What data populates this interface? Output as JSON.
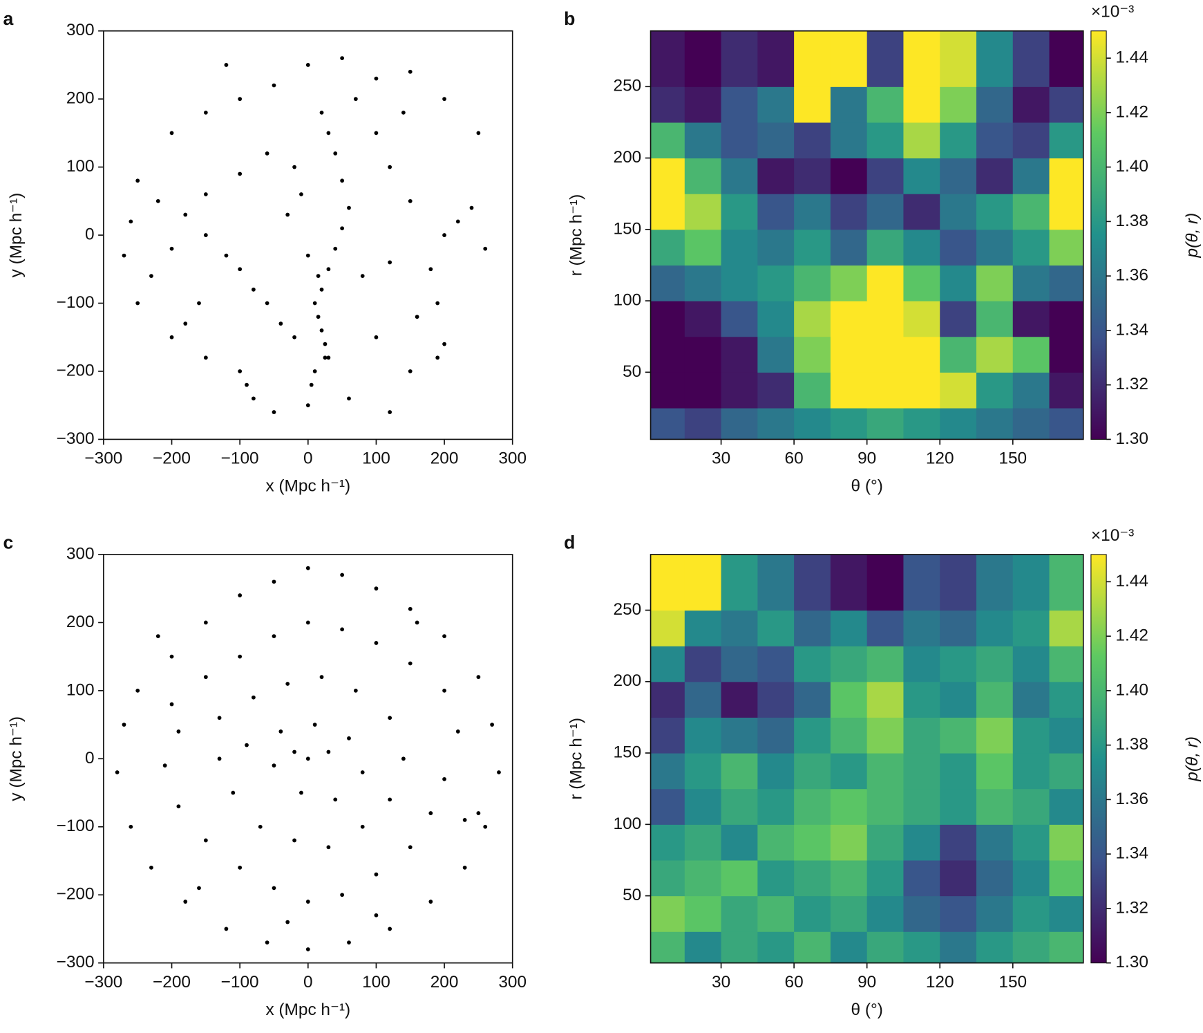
{
  "chart_data": [
    {
      "type": "scatter",
      "panel_label": "a",
      "xlabel": "x (Mpc h⁻¹)",
      "ylabel": "y (Mpc h⁻¹)",
      "color": "#000000",
      "xlim": [
        -300,
        300
      ],
      "ylim": [
        -300,
        300
      ],
      "xticks": [
        {
          "value": -300,
          "label": "−300"
        },
        {
          "value": -200,
          "label": "−200"
        },
        {
          "value": -100,
          "label": "−100"
        },
        0,
        100,
        200,
        300
      ],
      "yticks": [
        {
          "value": -300,
          "label": "−300"
        },
        {
          "value": -200,
          "label": "−200"
        },
        {
          "value": -100,
          "label": "−100"
        },
        0,
        100,
        200,
        300
      ],
      "x": [
        -200,
        -150,
        -100,
        -50,
        0,
        50,
        100,
        150,
        200,
        250,
        -250,
        -220,
        -180,
        -150,
        -120,
        -100,
        -80,
        -60,
        -40,
        -20,
        10,
        15,
        20,
        25,
        30,
        10,
        5,
        0,
        20,
        30,
        40,
        50,
        60,
        50,
        40,
        30,
        20,
        -20,
        -60,
        -100,
        -150,
        -200,
        -230,
        -250,
        -200,
        -150,
        -100,
        -90,
        -80,
        -50,
        100,
        150,
        190,
        200,
        190,
        180,
        200,
        220,
        240,
        260,
        150,
        120,
        100,
        140,
        -260,
        -270,
        -160,
        -180,
        60,
        120,
        80,
        120,
        160,
        -30,
        -10,
        70,
        -120,
        0,
        15,
        25
      ],
      "y": [
        150,
        180,
        200,
        220,
        250,
        260,
        230,
        240,
        200,
        150,
        80,
        50,
        30,
        0,
        -30,
        -50,
        -80,
        -100,
        -130,
        -150,
        -100,
        -120,
        -140,
        -160,
        -180,
        -200,
        -220,
        -250,
        -80,
        -50,
        -20,
        10,
        40,
        80,
        120,
        150,
        180,
        100,
        120,
        90,
        60,
        -20,
        -60,
        -100,
        -150,
        -180,
        -200,
        -220,
        -240,
        -260,
        -150,
        -200,
        -180,
        -160,
        -100,
        -50,
        0,
        20,
        40,
        -20,
        50,
        100,
        150,
        180,
        20,
        -30,
        -100,
        -130,
        -240,
        -260,
        -60,
        -40,
        -120,
        30,
        60,
        200,
        250,
        -30,
        -60,
        -180
      ]
    },
    {
      "type": "heatmap",
      "panel_label": "b",
      "xlabel": "θ (°)",
      "ylabel": "r (Mpc h⁻¹)",
      "colorbar_label": "p(θ, r)",
      "colorbar_multiplier": "×10⁻³",
      "xlim": [
        1,
        179
      ],
      "ylim": [
        3,
        289
      ],
      "xticks": [
        30,
        60,
        90,
        120,
        150
      ],
      "yticks": [
        50,
        100,
        150,
        200,
        250
      ],
      "clim": [
        1.3,
        1.45
      ],
      "cticks": [
        {
          "value": 1.3,
          "label": "1.30"
        },
        1.32,
        1.34,
        1.36,
        1.38,
        {
          "value": 1.4,
          "label": "1.40"
        },
        1.42,
        1.44
      ],
      "x_bins": [
        1,
        15,
        30,
        45,
        60,
        75,
        90,
        105,
        120,
        135,
        150,
        165,
        179
      ],
      "y_bins": [
        3,
        25,
        50,
        75,
        100,
        125,
        150,
        175,
        200,
        225,
        250,
        289
      ],
      "z": [
        [
          1.34,
          1.33,
          1.35,
          1.36,
          1.37,
          1.38,
          1.39,
          1.38,
          1.37,
          1.36,
          1.35,
          1.34
        ],
        [
          1.3,
          1.3,
          1.31,
          1.32,
          1.4,
          1.45,
          1.45,
          1.45,
          1.44,
          1.38,
          1.36,
          1.31
        ],
        [
          1.3,
          1.3,
          1.31,
          1.36,
          1.42,
          1.45,
          1.45,
          1.45,
          1.4,
          1.43,
          1.41,
          1.3
        ],
        [
          1.3,
          1.31,
          1.34,
          1.37,
          1.43,
          1.45,
          1.45,
          1.44,
          1.33,
          1.4,
          1.31,
          1.3
        ],
        [
          1.35,
          1.36,
          1.37,
          1.38,
          1.4,
          1.42,
          1.45,
          1.41,
          1.37,
          1.42,
          1.36,
          1.35
        ],
        [
          1.39,
          1.41,
          1.37,
          1.36,
          1.38,
          1.35,
          1.39,
          1.37,
          1.34,
          1.36,
          1.38,
          1.42
        ],
        [
          1.45,
          1.43,
          1.38,
          1.34,
          1.36,
          1.33,
          1.35,
          1.32,
          1.36,
          1.38,
          1.4,
          1.45
        ],
        [
          1.45,
          1.4,
          1.36,
          1.31,
          1.32,
          1.3,
          1.33,
          1.37,
          1.35,
          1.32,
          1.36,
          1.45
        ],
        [
          1.4,
          1.36,
          1.34,
          1.35,
          1.33,
          1.36,
          1.38,
          1.43,
          1.38,
          1.34,
          1.33,
          1.38
        ],
        [
          1.32,
          1.31,
          1.34,
          1.36,
          1.45,
          1.36,
          1.4,
          1.45,
          1.42,
          1.35,
          1.31,
          1.33
        ],
        [
          1.31,
          1.3,
          1.32,
          1.31,
          1.45,
          1.45,
          1.33,
          1.45,
          1.44,
          1.37,
          1.33,
          1.3
        ]
      ]
    },
    {
      "type": "scatter",
      "panel_label": "c",
      "xlabel": "x (Mpc h⁻¹)",
      "ylabel": "y (Mpc h⁻¹)",
      "color": "#000000",
      "xlim": [
        -300,
        300
      ],
      "ylim": [
        -300,
        300
      ],
      "xticks": [
        {
          "value": -300,
          "label": "−300"
        },
        {
          "value": -200,
          "label": "−200"
        },
        {
          "value": -100,
          "label": "−100"
        },
        0,
        100,
        200,
        300
      ],
      "yticks": [
        {
          "value": -300,
          "label": "−300"
        },
        {
          "value": -200,
          "label": "−200"
        },
        {
          "value": -100,
          "label": "−100"
        },
        0,
        100,
        200,
        300
      ],
      "x": [
        -250,
        -200,
        -150,
        -100,
        -50,
        0,
        50,
        100,
        150,
        200,
        250,
        270,
        280,
        260,
        230,
        180,
        120,
        60,
        0,
        -60,
        -120,
        -180,
        -230,
        -260,
        -280,
        -270,
        -200,
        -150,
        -100,
        -50,
        0,
        50,
        100,
        150,
        200,
        220,
        200,
        180,
        150,
        100,
        50,
        0,
        -50,
        -100,
        -150,
        -190,
        -210,
        -190,
        -130,
        -80,
        -30,
        20,
        70,
        120,
        140,
        120,
        80,
        30,
        -20,
        -70,
        -110,
        -130,
        -90,
        -40,
        10,
        60,
        80,
        40,
        -10,
        -50,
        0,
        30,
        -20,
        230,
        250,
        -160,
        160,
        -220,
        100,
        -30
      ],
      "y": [
        100,
        150,
        200,
        240,
        260,
        280,
        270,
        250,
        220,
        180,
        120,
        50,
        -20,
        -100,
        -160,
        -210,
        -250,
        -270,
        -280,
        -270,
        -250,
        -210,
        -160,
        -100,
        -20,
        50,
        80,
        120,
        150,
        180,
        200,
        190,
        170,
        140,
        100,
        40,
        -30,
        -80,
        -130,
        -170,
        -200,
        -210,
        -190,
        -160,
        -120,
        -70,
        -10,
        40,
        60,
        90,
        110,
        120,
        100,
        60,
        0,
        -60,
        -100,
        -130,
        -120,
        -100,
        -50,
        0,
        20,
        40,
        50,
        30,
        -20,
        -60,
        -50,
        -10,
        0,
        10,
        10,
        -90,
        -80,
        -190,
        200,
        180,
        -230,
        -240
      ]
    },
    {
      "type": "heatmap",
      "panel_label": "d",
      "xlabel": "θ (°)",
      "ylabel": "r (Mpc h⁻¹)",
      "colorbar_label": "p(θ, r)",
      "colorbar_multiplier": "×10⁻³",
      "xlim": [
        1,
        179
      ],
      "ylim": [
        3,
        289
      ],
      "xticks": [
        30,
        60,
        90,
        120,
        150
      ],
      "yticks": [
        50,
        100,
        150,
        200,
        250
      ],
      "clim": [
        1.3,
        1.45
      ],
      "cticks": [
        {
          "value": 1.3,
          "label": "1.30"
        },
        1.32,
        1.34,
        1.36,
        1.38,
        {
          "value": 1.4,
          "label": "1.40"
        },
        1.42,
        1.44
      ],
      "x_bins": [
        1,
        15,
        30,
        45,
        60,
        75,
        90,
        105,
        120,
        135,
        150,
        165,
        179
      ],
      "y_bins": [
        3,
        25,
        50,
        75,
        100,
        125,
        150,
        175,
        200,
        225,
        250,
        289
      ],
      "z": [
        [
          1.4,
          1.37,
          1.39,
          1.38,
          1.4,
          1.37,
          1.39,
          1.38,
          1.36,
          1.38,
          1.39,
          1.4
        ],
        [
          1.42,
          1.41,
          1.39,
          1.4,
          1.38,
          1.39,
          1.37,
          1.35,
          1.34,
          1.36,
          1.38,
          1.37
        ],
        [
          1.39,
          1.4,
          1.41,
          1.38,
          1.39,
          1.4,
          1.38,
          1.34,
          1.32,
          1.35,
          1.37,
          1.41
        ],
        [
          1.38,
          1.39,
          1.37,
          1.4,
          1.41,
          1.42,
          1.39,
          1.37,
          1.33,
          1.36,
          1.38,
          1.42
        ],
        [
          1.34,
          1.37,
          1.39,
          1.38,
          1.4,
          1.41,
          1.4,
          1.39,
          1.38,
          1.4,
          1.39,
          1.37
        ],
        [
          1.36,
          1.38,
          1.4,
          1.37,
          1.39,
          1.38,
          1.4,
          1.39,
          1.38,
          1.41,
          1.38,
          1.39
        ],
        [
          1.33,
          1.37,
          1.36,
          1.35,
          1.38,
          1.4,
          1.42,
          1.39,
          1.4,
          1.42,
          1.38,
          1.37
        ],
        [
          1.32,
          1.35,
          1.31,
          1.33,
          1.35,
          1.41,
          1.43,
          1.38,
          1.37,
          1.4,
          1.36,
          1.38
        ],
        [
          1.37,
          1.33,
          1.35,
          1.34,
          1.38,
          1.39,
          1.4,
          1.37,
          1.38,
          1.39,
          1.37,
          1.4
        ],
        [
          1.44,
          1.37,
          1.36,
          1.38,
          1.35,
          1.37,
          1.34,
          1.36,
          1.35,
          1.37,
          1.38,
          1.43
        ],
        [
          1.45,
          1.45,
          1.38,
          1.36,
          1.33,
          1.31,
          1.3,
          1.34,
          1.33,
          1.36,
          1.37,
          1.4
        ]
      ]
    }
  ]
}
